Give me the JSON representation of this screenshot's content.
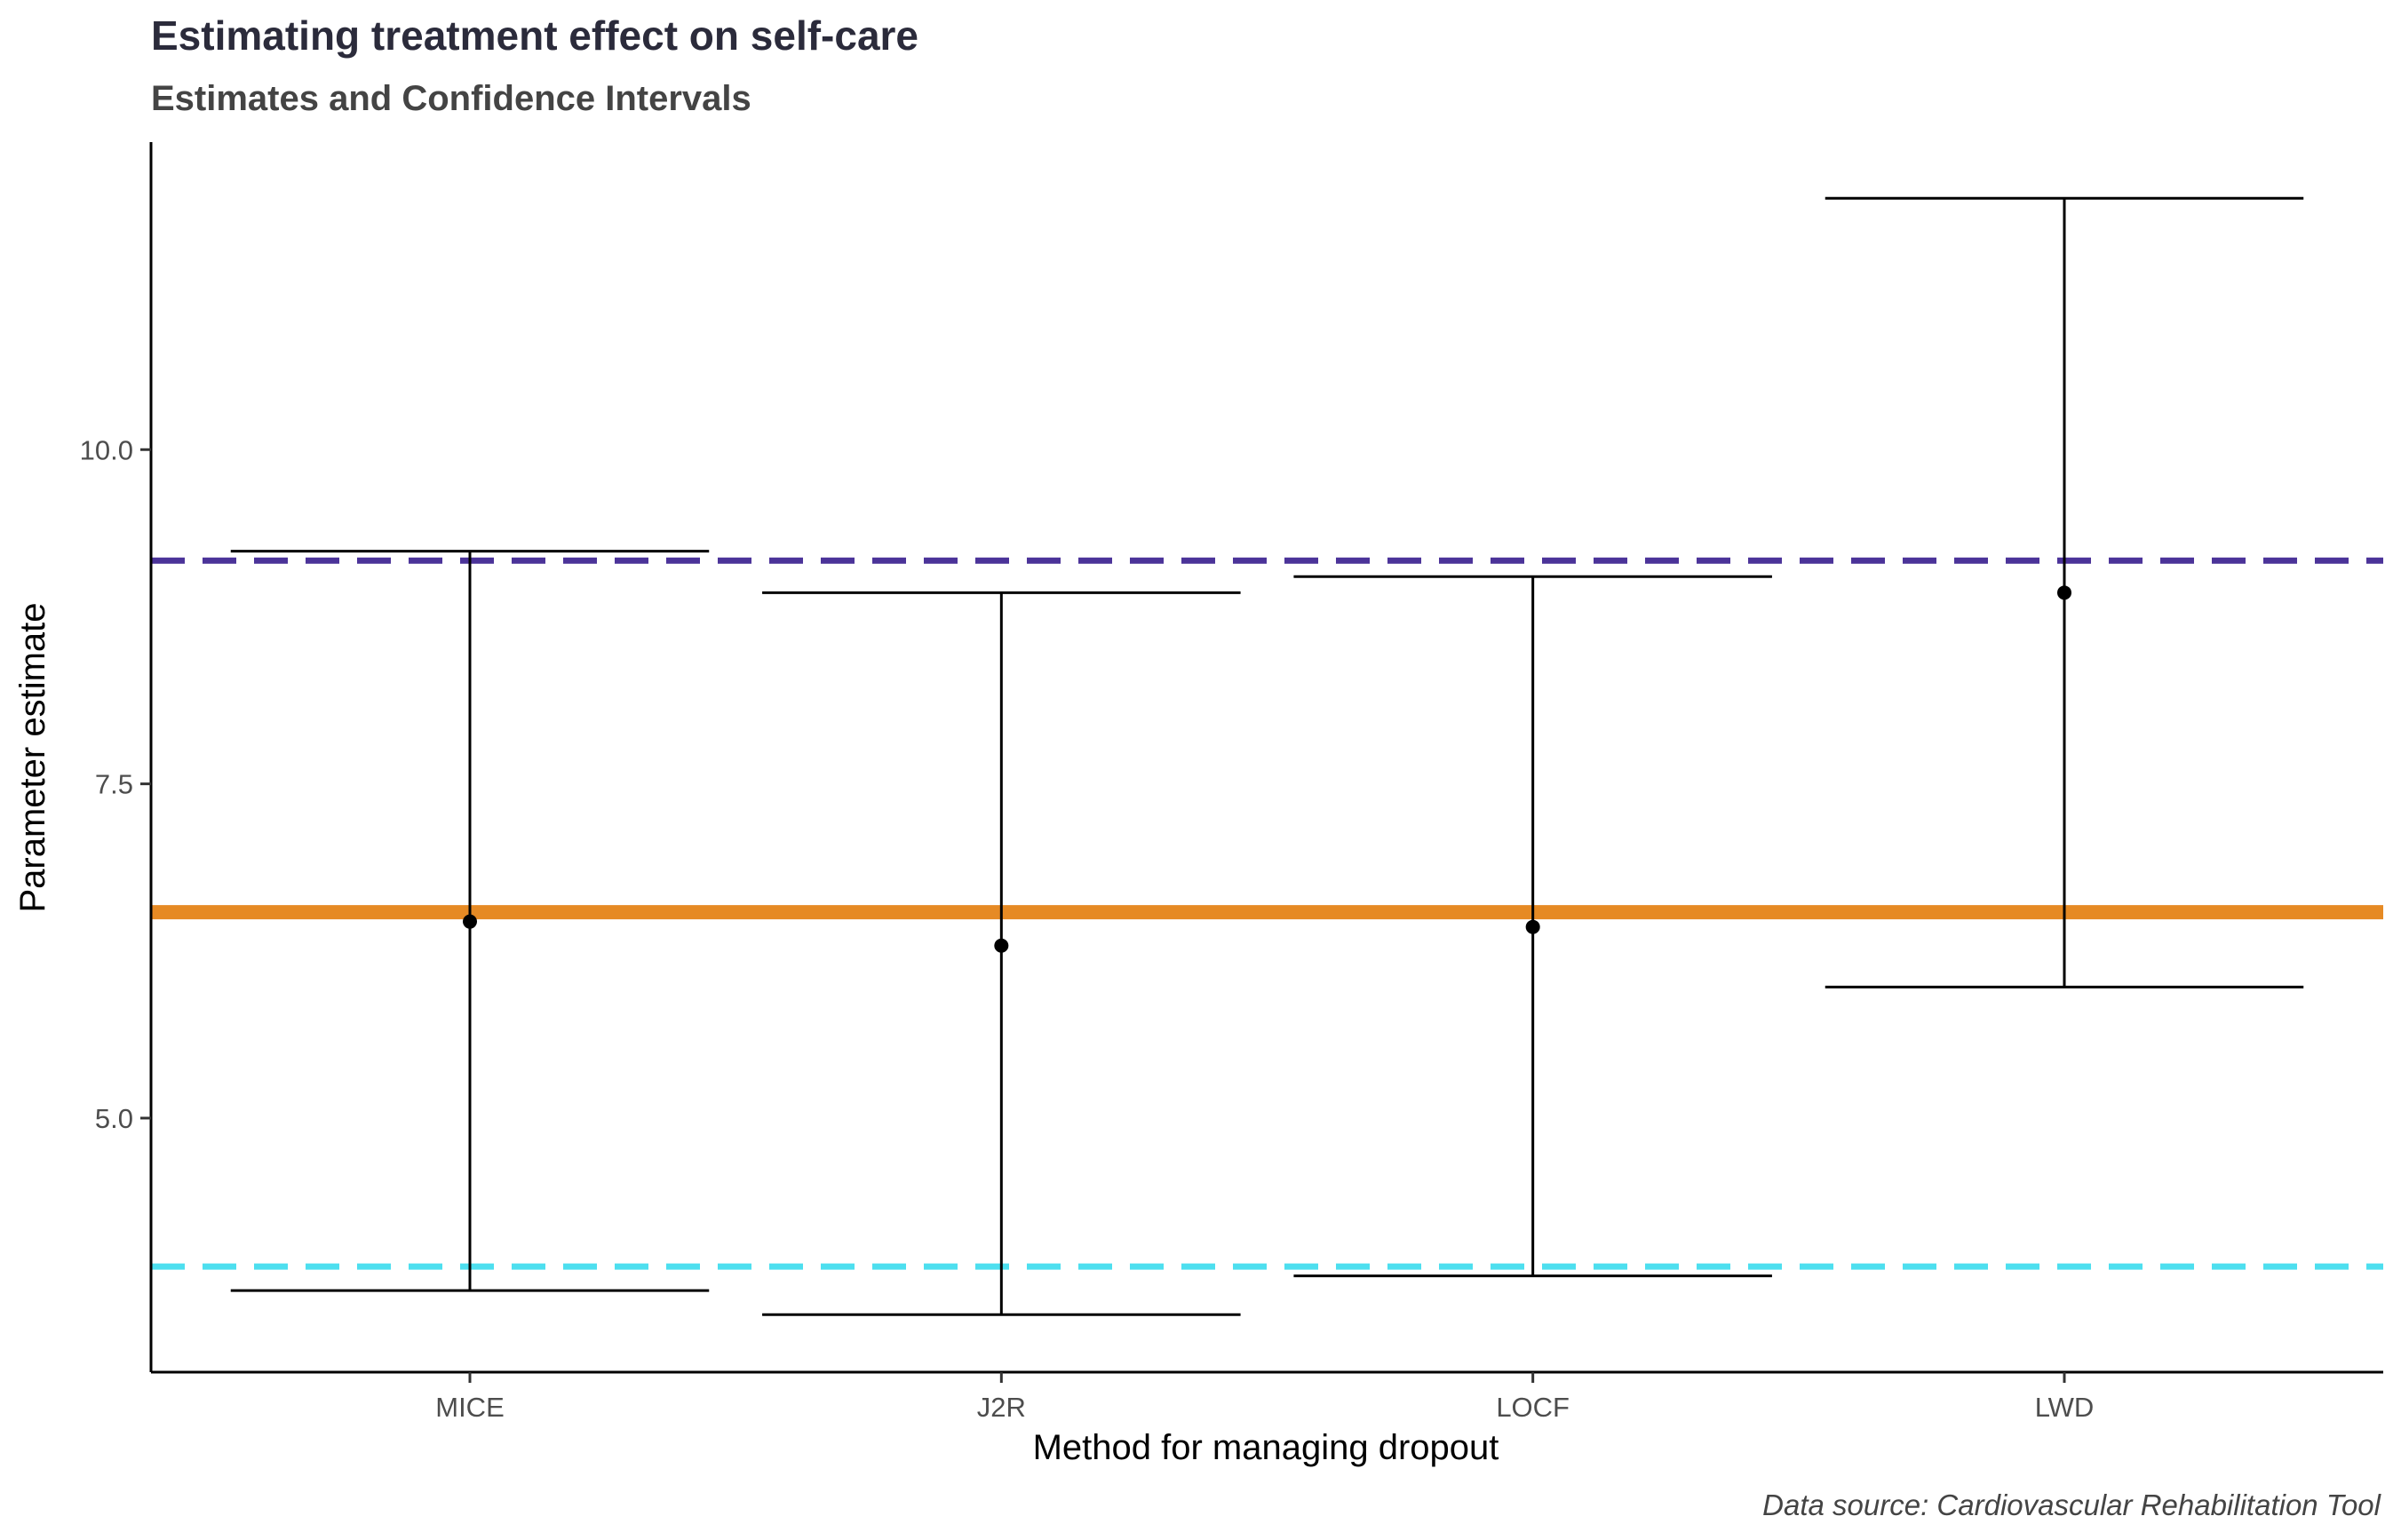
{
  "chart_data": {
    "type": "errorbar",
    "title": "Estimating treatment effect on self-care",
    "subtitle": "Estimates and Confidence Intervals",
    "xlabel": "Method for managing dropout",
    "ylabel": "Parameter estimate",
    "caption": "Data source: Cardiovascular Rehabilitation Tool",
    "categories": [
      "MICE",
      "J2R",
      "LOCF",
      "LWD"
    ],
    "estimates": [
      6.47,
      6.29,
      6.43,
      8.93
    ],
    "lower": [
      3.71,
      3.53,
      3.82,
      5.98
    ],
    "upper": [
      9.24,
      8.93,
      9.05,
      11.88
    ],
    "ylim": [
      3.1,
      12.3
    ],
    "yticks": [
      5.0,
      7.5,
      10.0
    ],
    "ytick_labels": [
      "5.0",
      "7.5",
      "10.0"
    ],
    "reference_lines": [
      {
        "value": 9.17,
        "style": "dashed",
        "color": "#4b3399"
      },
      {
        "value": 6.54,
        "style": "solid",
        "color": "#e68a24"
      },
      {
        "value": 3.89,
        "style": "dashed",
        "color": "#4ddfef"
      }
    ],
    "grid": false,
    "legend": "none"
  }
}
